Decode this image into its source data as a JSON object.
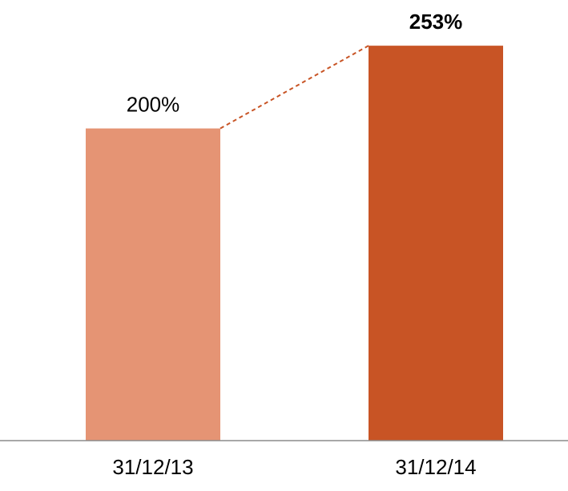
{
  "chart_data": {
    "type": "bar",
    "categories": [
      "31/12/13",
      "31/12/14"
    ],
    "values": [
      200,
      253
    ],
    "value_labels": [
      "200%",
      "253%"
    ],
    "colors": [
      "#e59474",
      "#c85425"
    ]
  }
}
